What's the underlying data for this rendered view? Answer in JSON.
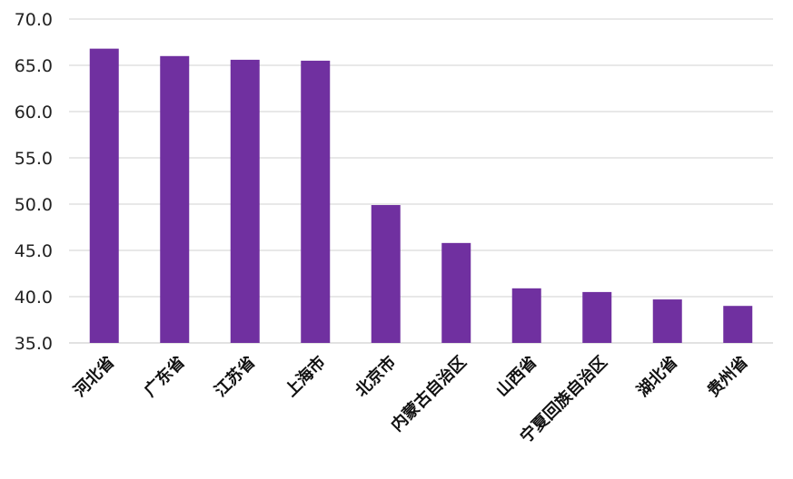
{
  "chart_data": {
    "type": "bar",
    "title": "",
    "xlabel": "",
    "ylabel": "",
    "categories": [
      "河北省",
      "广东省",
      "江苏省",
      "上海市",
      "北京市",
      "内蒙古自治区",
      "山西省",
      "宁夏回族自治区",
      "湖北省",
      "贵州省"
    ],
    "values": [
      66.8,
      66.0,
      65.6,
      65.5,
      49.9,
      45.8,
      40.9,
      40.5,
      39.7,
      39.0
    ],
    "ylim": [
      35.0,
      70.0
    ],
    "yticks": [
      "35.0",
      "40.0",
      "45.0",
      "50.0",
      "55.0",
      "60.0",
      "65.0",
      "70.0"
    ],
    "grid": true,
    "legend": "none",
    "colors": {
      "bar": "#7030A0",
      "grid": "#D9D9D9"
    }
  }
}
